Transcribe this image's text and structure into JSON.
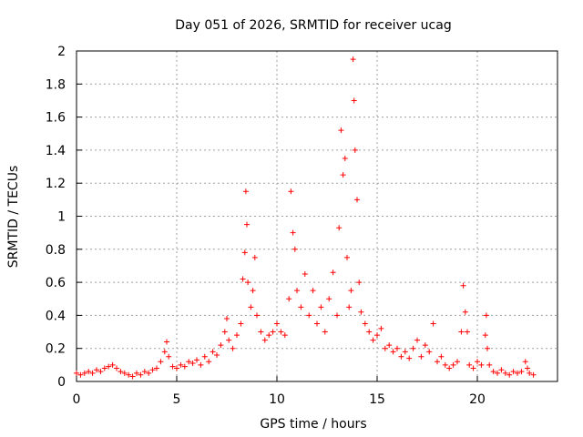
{
  "chart_data": {
    "type": "scatter",
    "title": "Day 051 of 2026, SRMTID for receiver ucag",
    "xlabel": "GPS time / hours",
    "ylabel": "SRMTID / TECUs",
    "xlim": [
      0,
      24
    ],
    "ylim": [
      0,
      2
    ],
    "x_ticks": [
      "0",
      "5",
      "10",
      "15",
      "20"
    ],
    "x_tick_values": [
      0,
      5,
      10,
      15,
      20
    ],
    "y_ticks": [
      "0",
      "0.2",
      "0.4",
      "0.6",
      "0.8",
      "1",
      "1.2",
      "1.4",
      "1.6",
      "1.8",
      "2"
    ],
    "y_tick_values": [
      0,
      0.2,
      0.4,
      0.6,
      0.8,
      1.0,
      1.2,
      1.4,
      1.6,
      1.8,
      2.0
    ],
    "grid": true,
    "marker": "plus",
    "color": "#ff0000",
    "series": [
      {
        "name": "SRMTID",
        "points": [
          [
            0.0,
            0.05
          ],
          [
            0.2,
            0.04
          ],
          [
            0.4,
            0.05
          ],
          [
            0.6,
            0.06
          ],
          [
            0.8,
            0.05
          ],
          [
            1.0,
            0.07
          ],
          [
            1.2,
            0.06
          ],
          [
            1.4,
            0.08
          ],
          [
            1.6,
            0.09
          ],
          [
            1.8,
            0.1
          ],
          [
            2.0,
            0.08
          ],
          [
            2.2,
            0.06
          ],
          [
            2.4,
            0.05
          ],
          [
            2.6,
            0.04
          ],
          [
            2.8,
            0.03
          ],
          [
            3.0,
            0.05
          ],
          [
            3.2,
            0.04
          ],
          [
            3.4,
            0.06
          ],
          [
            3.6,
            0.05
          ],
          [
            3.8,
            0.07
          ],
          [
            4.0,
            0.08
          ],
          [
            4.2,
            0.12
          ],
          [
            4.4,
            0.18
          ],
          [
            4.5,
            0.24
          ],
          [
            4.6,
            0.15
          ],
          [
            4.8,
            0.09
          ],
          [
            5.0,
            0.08
          ],
          [
            5.2,
            0.1
          ],
          [
            5.4,
            0.09
          ],
          [
            5.6,
            0.12
          ],
          [
            5.8,
            0.11
          ],
          [
            6.0,
            0.13
          ],
          [
            6.2,
            0.1
          ],
          [
            6.4,
            0.15
          ],
          [
            6.6,
            0.12
          ],
          [
            6.8,
            0.18
          ],
          [
            7.0,
            0.16
          ],
          [
            7.2,
            0.22
          ],
          [
            7.4,
            0.3
          ],
          [
            7.5,
            0.38
          ],
          [
            7.6,
            0.25
          ],
          [
            7.8,
            0.2
          ],
          [
            8.0,
            0.28
          ],
          [
            8.2,
            0.35
          ],
          [
            8.3,
            0.62
          ],
          [
            8.4,
            0.78
          ],
          [
            8.45,
            1.15
          ],
          [
            8.5,
            0.95
          ],
          [
            8.55,
            0.6
          ],
          [
            8.7,
            0.45
          ],
          [
            8.8,
            0.55
          ],
          [
            8.9,
            0.75
          ],
          [
            9.0,
            0.4
          ],
          [
            9.2,
            0.3
          ],
          [
            9.4,
            0.25
          ],
          [
            9.6,
            0.28
          ],
          [
            9.8,
            0.3
          ],
          [
            10.0,
            0.35
          ],
          [
            10.2,
            0.3
          ],
          [
            10.4,
            0.28
          ],
          [
            10.6,
            0.5
          ],
          [
            10.7,
            1.15
          ],
          [
            10.8,
            0.9
          ],
          [
            10.9,
            0.8
          ],
          [
            11.0,
            0.55
          ],
          [
            11.2,
            0.45
          ],
          [
            11.4,
            0.65
          ],
          [
            11.6,
            0.4
          ],
          [
            11.8,
            0.55
          ],
          [
            12.0,
            0.35
          ],
          [
            12.2,
            0.45
          ],
          [
            12.4,
            0.3
          ],
          [
            12.6,
            0.5
          ],
          [
            12.8,
            0.66
          ],
          [
            13.0,
            0.4
          ],
          [
            13.1,
            0.93
          ],
          [
            13.2,
            1.52
          ],
          [
            13.3,
            1.25
          ],
          [
            13.4,
            1.35
          ],
          [
            13.5,
            0.75
          ],
          [
            13.6,
            0.45
          ],
          [
            13.7,
            0.55
          ],
          [
            13.8,
            1.95
          ],
          [
            13.85,
            1.7
          ],
          [
            13.9,
            1.4
          ],
          [
            14.0,
            1.1
          ],
          [
            14.1,
            0.6
          ],
          [
            14.2,
            0.42
          ],
          [
            14.4,
            0.35
          ],
          [
            14.6,
            0.3
          ],
          [
            14.8,
            0.25
          ],
          [
            15.0,
            0.28
          ],
          [
            15.2,
            0.32
          ],
          [
            15.4,
            0.2
          ],
          [
            15.6,
            0.22
          ],
          [
            15.8,
            0.18
          ],
          [
            16.0,
            0.2
          ],
          [
            16.2,
            0.15
          ],
          [
            16.4,
            0.18
          ],
          [
            16.6,
            0.14
          ],
          [
            16.8,
            0.2
          ],
          [
            17.0,
            0.25
          ],
          [
            17.2,
            0.15
          ],
          [
            17.4,
            0.22
          ],
          [
            17.6,
            0.18
          ],
          [
            17.8,
            0.35
          ],
          [
            18.0,
            0.12
          ],
          [
            18.2,
            0.15
          ],
          [
            18.4,
            0.1
          ],
          [
            18.6,
            0.08
          ],
          [
            18.8,
            0.1
          ],
          [
            19.0,
            0.12
          ],
          [
            19.2,
            0.3
          ],
          [
            19.3,
            0.58
          ],
          [
            19.4,
            0.42
          ],
          [
            19.5,
            0.3
          ],
          [
            19.6,
            0.1
          ],
          [
            19.8,
            0.08
          ],
          [
            20.0,
            0.12
          ],
          [
            20.2,
            0.1
          ],
          [
            20.4,
            0.28
          ],
          [
            20.45,
            0.4
          ],
          [
            20.5,
            0.2
          ],
          [
            20.6,
            0.1
          ],
          [
            20.8,
            0.06
          ],
          [
            21.0,
            0.05
          ],
          [
            21.2,
            0.07
          ],
          [
            21.4,
            0.05
          ],
          [
            21.6,
            0.04
          ],
          [
            21.8,
            0.06
          ],
          [
            22.0,
            0.05
          ],
          [
            22.2,
            0.06
          ],
          [
            22.4,
            0.12
          ],
          [
            22.5,
            0.08
          ],
          [
            22.6,
            0.05
          ],
          [
            22.8,
            0.04
          ]
        ]
      }
    ]
  }
}
